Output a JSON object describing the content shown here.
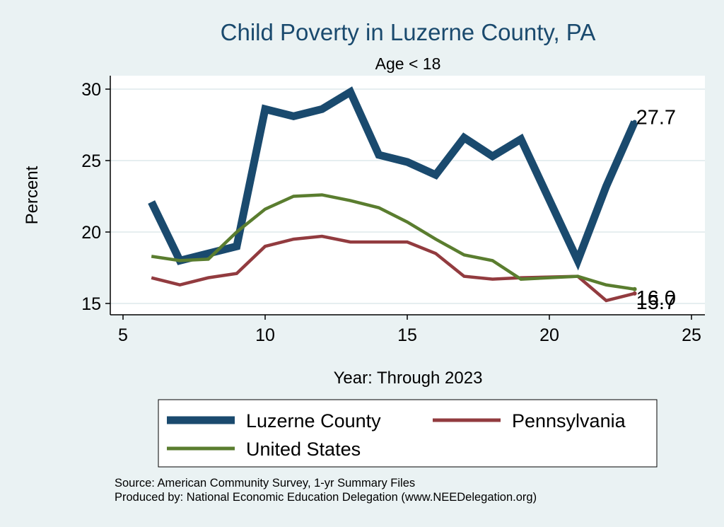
{
  "chart_data": {
    "type": "line",
    "title": "Child Poverty in Luzerne County, PA",
    "subtitle": "Age < 18",
    "xlabel": "Year: Through 2023",
    "ylabel": "Percent",
    "xlim": [
      5,
      25
    ],
    "ylim": [
      15,
      30
    ],
    "xticks": [
      5,
      10,
      15,
      20,
      25
    ],
    "yticks": [
      15,
      20,
      25,
      30
    ],
    "grid": true,
    "x": [
      6,
      7,
      8,
      9,
      10,
      11,
      12,
      13,
      14,
      15,
      16,
      17,
      18,
      19,
      21,
      22,
      23
    ],
    "series": [
      {
        "name": "Luzerne County",
        "color": "#1a4a6e",
        "values": [
          22.1,
          18.0,
          18.5,
          19.0,
          28.6,
          28.1,
          28.6,
          29.8,
          25.4,
          24.9,
          24.0,
          26.6,
          25.3,
          26.5,
          18.0,
          23.2,
          27.7
        ],
        "end_label": "27.7"
      },
      {
        "name": "Pennsylvania",
        "color": "#923b3f",
        "values": [
          16.8,
          16.3,
          16.8,
          17.1,
          19.0,
          19.5,
          19.7,
          19.3,
          19.3,
          19.3,
          18.5,
          16.9,
          16.7,
          16.8,
          16.9,
          15.2,
          15.7
        ],
        "end_label": "15.7"
      },
      {
        "name": "United States",
        "color": "#5a7d2f",
        "values": [
          18.3,
          18.0,
          18.1,
          20.0,
          21.6,
          22.5,
          22.6,
          22.2,
          21.7,
          20.7,
          19.5,
          18.4,
          18.0,
          16.7,
          16.9,
          16.3,
          16.0
        ],
        "end_label": "16.0"
      }
    ],
    "legend": {
      "placement": "bottom",
      "order": [
        "Luzerne County",
        "Pennsylvania",
        "United States"
      ]
    },
    "notes": [
      "Source: American Community Survey, 1-yr Summary Files",
      "Produced by: National Economic Education Delegation (www.NEEDelegation.org)"
    ]
  }
}
